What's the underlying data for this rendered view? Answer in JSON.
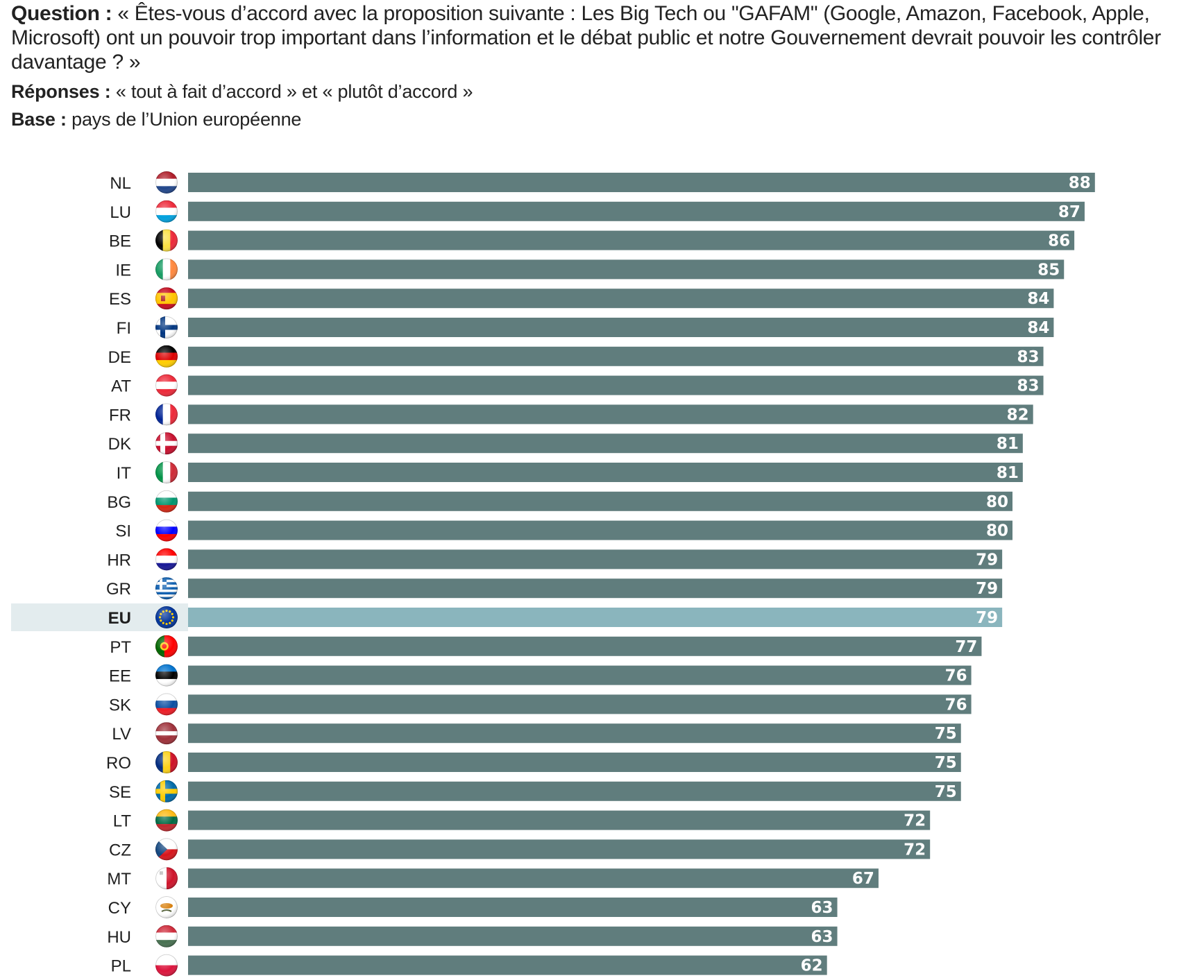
{
  "header": {
    "question_label": "Question :",
    "question_text": "« Êtes-vous d’accord avec la proposition suivante : Les Big Tech ou \"GAFAM\" (Google, Amazon, Facebook, Apple, Microsoft) ont un pouvoir trop important dans l’information et le débat public et notre Gouvernement devrait pouvoir les contrôler davantage ? »",
    "responses_label": "Réponses :",
    "responses_text": "« tout à fait d’accord » et « plutôt d’accord »",
    "base_label": "Base :",
    "base_text": "pays de l’Union européenne"
  },
  "colors": {
    "bar": "#607d7d",
    "bar_highlight": "#8ab5bd",
    "row_highlight": "#e3ecee",
    "value_text": "#ffffff"
  },
  "chart_data": {
    "type": "bar",
    "orientation": "horizontal",
    "categories": [
      "NL",
      "LU",
      "BE",
      "IE",
      "ES",
      "FI",
      "DE",
      "AT",
      "FR",
      "DK",
      "IT",
      "BG",
      "SI",
      "HR",
      "GR",
      "EU",
      "PT",
      "EE",
      "SK",
      "LV",
      "RO",
      "SE",
      "LT",
      "CZ",
      "MT",
      "CY",
      "HU",
      "PL"
    ],
    "values": [
      88,
      87,
      86,
      85,
      84,
      84,
      83,
      83,
      82,
      81,
      81,
      80,
      80,
      79,
      79,
      79,
      77,
      76,
      76,
      75,
      75,
      75,
      72,
      72,
      67,
      63,
      63,
      62
    ],
    "highlight": "EU",
    "xlim": [
      0,
      100
    ],
    "data_labels": true,
    "grid": false,
    "flags": [
      "flag-nl-icon",
      "flag-lu-icon",
      "flag-be-icon",
      "flag-ie-icon",
      "flag-es-icon",
      "flag-fi-icon",
      "flag-de-icon",
      "flag-at-icon",
      "flag-fr-icon",
      "flag-dk-icon",
      "flag-it-icon",
      "flag-bg-icon",
      "flag-si-icon",
      "flag-hr-icon",
      "flag-gr-icon",
      "flag-eu-icon",
      "flag-pt-icon",
      "flag-ee-icon",
      "flag-sk-icon",
      "flag-lv-icon",
      "flag-ro-icon",
      "flag-se-icon",
      "flag-lt-icon",
      "flag-cz-icon",
      "flag-mt-icon",
      "flag-cy-icon",
      "flag-hu-icon",
      "flag-pl-icon"
    ]
  }
}
